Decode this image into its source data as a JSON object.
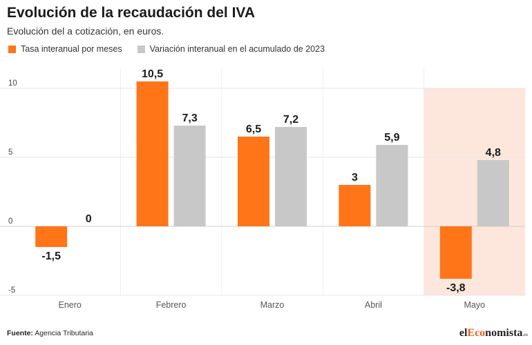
{
  "title": "Evolución de la recaudación del IVA",
  "subtitle": "Evolución del a cotización, en euros.",
  "footer": {
    "label": "Fuente:",
    "source": "Agencia Tributaria"
  },
  "logo": {
    "part1": "el",
    "part2": "Eco",
    "part3": "nomista",
    "suffix": ".es"
  },
  "colors": {
    "orange": "#ff7518",
    "gray": "#c8c8c8",
    "highlight": "#fde6dc"
  },
  "chart_data": {
    "type": "bar",
    "categories": [
      "Enero",
      "Febrero",
      "Marzo",
      "Abril",
      "Mayo"
    ],
    "series": [
      {
        "name": "Tasa interanual por meses",
        "values": [
          -1.5,
          10.5,
          6.5,
          3,
          -3.8
        ],
        "labels": [
          "-1,5",
          "10,5",
          "6,5",
          "3",
          "-3,8"
        ],
        "color": "#ff7518"
      },
      {
        "name": "Variación interanual en el acumulado de 2023",
        "values": [
          0,
          7.3,
          7.2,
          5.9,
          4.8
        ],
        "labels": [
          "0",
          "7,3",
          "7,2",
          "5,9",
          "4,8"
        ],
        "color": "#c8c8c8"
      }
    ],
    "yticks": [
      -5,
      0,
      5,
      10
    ],
    "ylim": [
      -5,
      10.5
    ],
    "highlight_category": "Mayo",
    "legend": "top-left",
    "grid": true
  }
}
